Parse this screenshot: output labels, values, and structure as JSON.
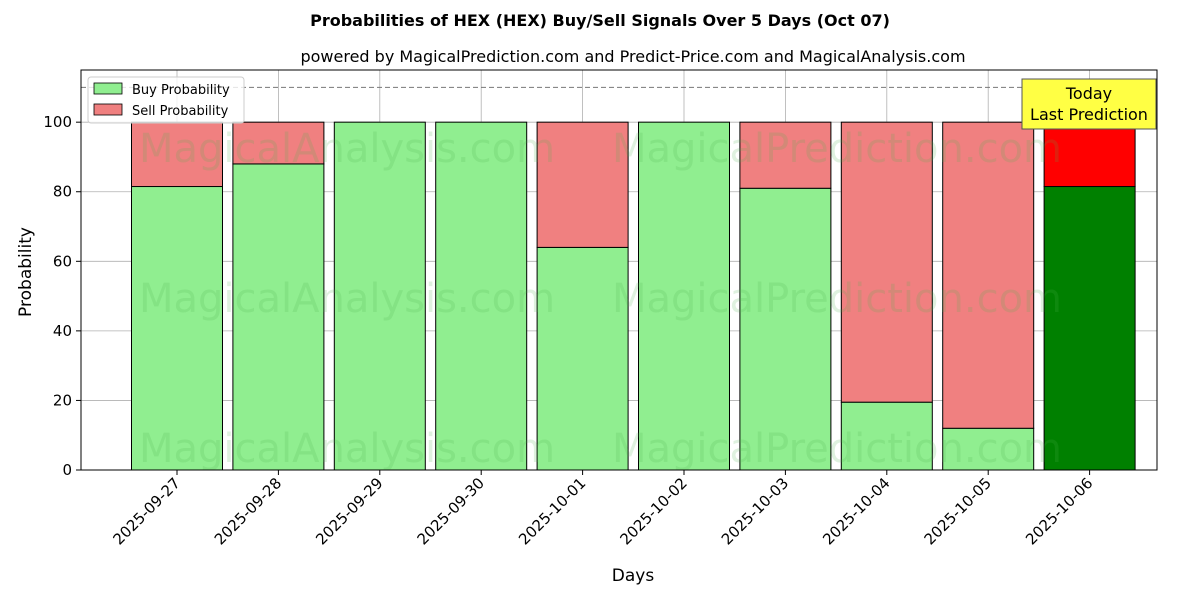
{
  "chart_data": {
    "type": "bar",
    "stacked": true,
    "title": "Probabilities of HEX (HEX) Buy/Sell Signals Over 5 Days (Oct 07)",
    "subtitle": "powered by MagicalPrediction.com and Predict-Price.com and MagicalAnalysis.com",
    "xlabel": "Days",
    "ylabel": "Probability",
    "ylim": [
      0,
      115
    ],
    "yticks": [
      0,
      20,
      40,
      60,
      80,
      100
    ],
    "grid": true,
    "legend_position": "top-left",
    "reference_line": 110,
    "categories": [
      "2025-09-27",
      "2025-09-28",
      "2025-09-29",
      "2025-09-30",
      "2025-10-01",
      "2025-10-02",
      "2025-10-03",
      "2025-10-04",
      "2025-10-05",
      "2025-10-06"
    ],
    "series": [
      {
        "name": "Buy Probability",
        "color": "#90ee90",
        "highlight_color": "#008000",
        "values": [
          81.5,
          88,
          100,
          100,
          64,
          100,
          81,
          19.5,
          12,
          81.5
        ]
      },
      {
        "name": "Sell Probability",
        "color": "#f08080",
        "highlight_color": "#ff0000",
        "values": [
          18.5,
          12,
          0,
          0,
          36,
          0,
          19,
          80.5,
          88,
          18.5
        ]
      }
    ],
    "highlight_index": 9,
    "annotation": {
      "line1": "Today",
      "line2": "Last Prediction",
      "background": "#ffff44"
    },
    "watermarks": [
      "MagicalAnalysis.com",
      "MagicalPrediction.com"
    ]
  }
}
